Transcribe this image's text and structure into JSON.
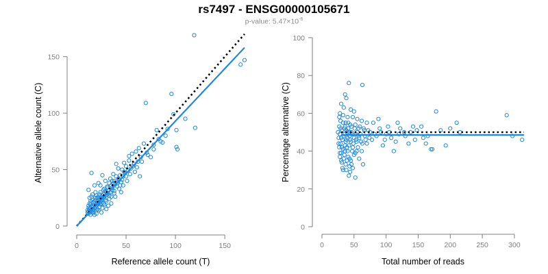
{
  "title": "rs7497 - ENSG00000105671",
  "subtitle": {
    "prefix": "p-value: 5.47×10",
    "exponent": "-6"
  },
  "colors": {
    "points": "#1e88e5",
    "fit": "#1e88e5",
    "reference": "#000000",
    "axis": "#7f7f7f"
  },
  "chart_data": [
    {
      "type": "scatter",
      "xlabel": "Reference allele count (T)",
      "ylabel": "Alternative allele count (C)",
      "xlim": [
        0,
        170
      ],
      "ylim": [
        0,
        165
      ],
      "xticks": [
        0,
        50,
        100,
        150
      ],
      "yticks": [
        0,
        50,
        100,
        150
      ],
      "grid": false,
      "fit_line": {
        "style": "solid",
        "x": [
          0,
          170
        ],
        "y": [
          0,
          158
        ]
      },
      "reference_line": {
        "style": "dotted",
        "x": [
          0,
          170
        ],
        "y": [
          0,
          170
        ]
      },
      "points": [
        [
          119,
          169
        ],
        [
          166,
          143
        ],
        [
          170,
          147
        ],
        [
          96,
          117
        ],
        [
          70,
          109
        ],
        [
          98,
          99
        ],
        [
          101,
          85
        ],
        [
          120,
          87
        ],
        [
          102,
          68
        ],
        [
          101,
          70
        ],
        [
          92,
          86
        ],
        [
          81,
          85
        ],
        [
          83,
          77
        ],
        [
          78,
          72
        ],
        [
          71,
          65
        ],
        [
          68,
          73
        ],
        [
          63,
          69
        ],
        [
          60,
          66
        ],
        [
          56,
          64
        ],
        [
          53,
          58
        ],
        [
          57,
          53
        ],
        [
          62,
          57
        ],
        [
          50,
          53
        ],
        [
          48,
          48
        ],
        [
          46,
          50
        ],
        [
          44,
          45
        ],
        [
          42,
          42
        ],
        [
          40,
          44
        ],
        [
          38,
          40
        ],
        [
          45,
          39
        ],
        [
          35,
          36
        ],
        [
          33,
          38
        ],
        [
          31,
          35
        ],
        [
          36,
          32
        ],
        [
          29,
          31
        ],
        [
          32,
          29
        ],
        [
          28,
          33
        ],
        [
          27,
          28
        ],
        [
          26,
          27
        ],
        [
          24,
          30
        ],
        [
          25,
          25
        ],
        [
          23,
          24
        ],
        [
          22,
          26
        ],
        [
          21,
          22
        ],
        [
          20,
          20
        ],
        [
          19,
          23
        ],
        [
          18,
          19
        ],
        [
          17,
          21
        ],
        [
          16,
          18
        ],
        [
          15,
          17
        ],
        [
          14,
          16
        ],
        [
          14,
          14
        ],
        [
          13,
          15
        ],
        [
          12,
          13
        ],
        [
          12,
          11
        ],
        [
          13,
          12
        ],
        [
          15,
          13
        ],
        [
          16,
          15
        ],
        [
          17,
          14
        ],
        [
          18,
          16
        ],
        [
          19,
          17
        ],
        [
          20,
          18
        ],
        [
          21,
          19
        ],
        [
          22,
          20
        ],
        [
          23,
          21
        ],
        [
          24,
          22
        ],
        [
          25,
          23
        ],
        [
          26,
          24
        ],
        [
          27,
          25
        ],
        [
          28,
          26
        ],
        [
          30,
          27
        ],
        [
          31,
          28
        ],
        [
          34,
          30
        ],
        [
          36,
          34
        ],
        [
          39,
          37
        ],
        [
          41,
          38
        ],
        [
          43,
          41
        ],
        [
          47,
          44
        ],
        [
          49,
          47
        ],
        [
          52,
          49
        ],
        [
          55,
          51
        ],
        [
          58,
          55
        ],
        [
          65,
          61
        ],
        [
          15,
          47
        ],
        [
          12,
          32
        ],
        [
          18,
          36
        ],
        [
          20,
          11
        ],
        [
          25,
          12
        ],
        [
          30,
          15
        ],
        [
          35,
          20
        ],
        [
          22,
          38
        ],
        [
          26,
          45
        ],
        [
          39,
          26
        ],
        [
          45,
          30
        ],
        [
          28,
          19
        ],
        [
          33,
          24
        ],
        [
          14,
          22
        ],
        [
          16,
          28
        ],
        [
          13,
          25
        ],
        [
          19,
          30
        ],
        [
          24,
          36
        ],
        [
          29,
          40
        ],
        [
          37,
          46
        ],
        [
          42,
          51
        ],
        [
          48,
          56
        ],
        [
          53,
          62
        ],
        [
          59,
          48
        ],
        [
          64,
          44
        ],
        [
          75,
          61
        ],
        [
          85,
          75
        ],
        [
          90,
          80
        ],
        [
          12,
          18
        ],
        [
          14,
          10
        ],
        [
          17,
          12
        ],
        [
          21,
          15
        ],
        [
          23,
          17
        ],
        [
          27,
          20
        ],
        [
          11,
          14
        ],
        [
          16,
          23
        ],
        [
          20,
          27
        ],
        [
          34,
          42
        ],
        [
          38,
          31
        ],
        [
          44,
          36
        ],
        [
          51,
          40
        ],
        [
          40,
          55
        ],
        [
          32,
          18
        ],
        [
          18,
          10
        ],
        [
          22,
          14
        ],
        [
          26,
          16
        ],
        [
          30,
          22
        ],
        [
          35,
          26
        ],
        [
          38,
          29
        ],
        [
          43,
          33
        ],
        [
          47,
          36
        ],
        [
          50,
          44
        ],
        [
          54,
          46
        ],
        [
          61,
          52
        ],
        [
          66,
          57
        ],
        [
          72,
          63
        ],
        [
          78,
          68
        ],
        [
          87,
          74
        ],
        [
          110,
          95
        ],
        [
          13,
          20
        ],
        [
          15,
          26
        ],
        [
          19,
          25
        ],
        [
          24,
          19
        ],
        [
          29,
          23
        ],
        [
          31,
          34
        ],
        [
          37,
          38
        ],
        [
          41,
          35
        ],
        [
          46,
          41
        ],
        [
          12,
          16
        ],
        [
          11,
          12
        ],
        [
          14,
          19
        ],
        [
          16,
          12
        ],
        [
          18,
          22
        ],
        [
          20,
          14
        ],
        [
          21,
          25
        ],
        [
          23,
          28
        ],
        [
          25,
          20
        ],
        [
          27,
          32
        ],
        [
          30,
          30
        ],
        [
          33,
          27
        ],
        [
          36,
          40
        ]
      ]
    },
    {
      "type": "scatter",
      "xlabel": "Total number of reads",
      "ylabel": "Percentage alternative (C)",
      "xlim": [
        0,
        315
      ],
      "ylim": [
        0,
        100
      ],
      "xticks": [
        0,
        50,
        100,
        150,
        200,
        250,
        300
      ],
      "yticks": [
        0,
        20,
        40,
        60,
        80,
        100
      ],
      "grid": false,
      "fit_line": {
        "style": "solid",
        "x": [
          30,
          315
        ],
        "y": [
          48.5,
          48.5
        ]
      },
      "reference_line": {
        "style": "dotted",
        "x": [
          30,
          315
        ],
        "y": [
          50,
          50
        ]
      },
      "points": [
        [
          42,
          76
        ],
        [
          63,
          75
        ],
        [
          36,
          70
        ],
        [
          38,
          68
        ],
        [
          30,
          65
        ],
        [
          34,
          63
        ],
        [
          45,
          62
        ],
        [
          50,
          61
        ],
        [
          28,
          60
        ],
        [
          33,
          59
        ],
        [
          40,
          58
        ],
        [
          48,
          58
        ],
        [
          55,
          57
        ],
        [
          62,
          56
        ],
        [
          70,
          55
        ],
        [
          29,
          56
        ],
        [
          37,
          55
        ],
        [
          44,
          54
        ],
        [
          52,
          54
        ],
        [
          27,
          53
        ],
        [
          35,
          52
        ],
        [
          41,
          52
        ],
        [
          57,
          52
        ],
        [
          66,
          51
        ],
        [
          75,
          50
        ],
        [
          31,
          51
        ],
        [
          39,
          50
        ],
        [
          46,
          50
        ],
        [
          53,
          49
        ],
        [
          60,
          49
        ],
        [
          28,
          49
        ],
        [
          34,
          48
        ],
        [
          43,
          48
        ],
        [
          50,
          47
        ],
        [
          58,
          47
        ],
        [
          68,
          46
        ],
        [
          26,
          47
        ],
        [
          32,
          46
        ],
        [
          38,
          46
        ],
        [
          45,
          45
        ],
        [
          54,
          45
        ],
        [
          63,
          44
        ],
        [
          29,
          44
        ],
        [
          36,
          43
        ],
        [
          42,
          43
        ],
        [
          48,
          42
        ],
        [
          56,
          42
        ],
        [
          27,
          42
        ],
        [
          33,
          41
        ],
        [
          40,
          40
        ],
        [
          47,
          40
        ],
        [
          52,
          39
        ],
        [
          30,
          39
        ],
        [
          35,
          38
        ],
        [
          41,
          37
        ],
        [
          28,
          37
        ],
        [
          34,
          36
        ],
        [
          39,
          35
        ],
        [
          45,
          35
        ],
        [
          31,
          34
        ],
        [
          37,
          33
        ],
        [
          43,
          32
        ],
        [
          48,
          31
        ],
        [
          32,
          31
        ],
        [
          38,
          30
        ],
        [
          44,
          29
        ],
        [
          42,
          27
        ],
        [
          52,
          26
        ],
        [
          64,
          33
        ],
        [
          70,
          44
        ],
        [
          78,
          46
        ],
        [
          85,
          48
        ],
        [
          92,
          50
        ],
        [
          100,
          49
        ],
        [
          108,
          47
        ],
        [
          115,
          45
        ],
        [
          122,
          52
        ],
        [
          130,
          48
        ],
        [
          138,
          50
        ],
        [
          145,
          46
        ],
        [
          155,
          53
        ],
        [
          162,
          44
        ],
        [
          170,
          41
        ],
        [
          178,
          61
        ],
        [
          185,
          51
        ],
        [
          193,
          43
        ],
        [
          200,
          52
        ],
        [
          210,
          55
        ],
        [
          215,
          50
        ],
        [
          288,
          59
        ],
        [
          297,
          48
        ],
        [
          312,
          46
        ],
        [
          80,
          55
        ],
        [
          88,
          57
        ],
        [
          95,
          43
        ],
        [
          103,
          53
        ],
        [
          112,
          40
        ],
        [
          120,
          49
        ],
        [
          135,
          44
        ],
        [
          148,
          51
        ],
        [
          165,
          48
        ],
        [
          172,
          41
        ],
        [
          25,
          50
        ],
        [
          26,
          44
        ],
        [
          27,
          58
        ],
        [
          29,
          52
        ],
        [
          30,
          47
        ],
        [
          31,
          42
        ],
        [
          33,
          55
        ],
        [
          35,
          49
        ],
        [
          36,
          53
        ],
        [
          37,
          45
        ],
        [
          38,
          51
        ],
        [
          40,
          47
        ],
        [
          41,
          55
        ],
        [
          43,
          50
        ],
        [
          44,
          46
        ],
        [
          46,
          53
        ],
        [
          47,
          49
        ],
        [
          49,
          44
        ],
        [
          51,
          52
        ],
        [
          53,
          46
        ],
        [
          55,
          50
        ],
        [
          57,
          48
        ],
        [
          59,
          53
        ],
        [
          61,
          45
        ],
        [
          65,
          52
        ],
        [
          67,
          48
        ],
        [
          72,
          51
        ],
        [
          74,
          47
        ],
        [
          82,
          49
        ],
        [
          90,
          52
        ],
        [
          98,
          46
        ],
        [
          105,
          50
        ],
        [
          118,
          55
        ],
        [
          128,
          50
        ],
        [
          142,
          53
        ],
        [
          158,
          47
        ],
        [
          28,
          39
        ],
        [
          30,
          35
        ],
        [
          33,
          30
        ],
        [
          36,
          40
        ],
        [
          39,
          42
        ],
        [
          43,
          36
        ],
        [
          46,
          33
        ],
        [
          50,
          38
        ],
        [
          54,
          40
        ],
        [
          58,
          36
        ],
        [
          62,
          40
        ]
      ]
    }
  ]
}
